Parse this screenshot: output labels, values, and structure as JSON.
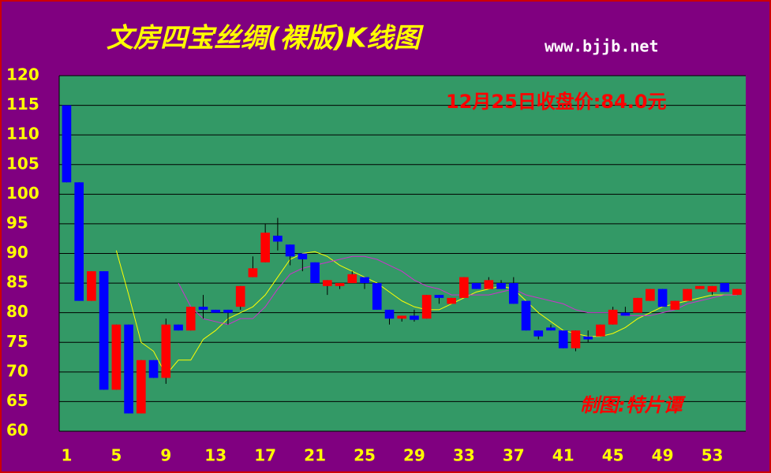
{
  "chart_data": {
    "type": "candlestick",
    "title": "文房四宝丝绸(裸版)K线图",
    "subtitle": "www.bjjb.net",
    "annotations": [
      "12月25日收盘价:84.0元",
      "制图:特片谭"
    ],
    "x": [
      1,
      2,
      3,
      4,
      5,
      6,
      7,
      8,
      9,
      10,
      11,
      12,
      13,
      14,
      15,
      16,
      17,
      18,
      19,
      20,
      21,
      22,
      23,
      24,
      25,
      26,
      27,
      28,
      29,
      30,
      31,
      32,
      33,
      34,
      35,
      36,
      37,
      38,
      39,
      40,
      41,
      42,
      43,
      44,
      45,
      46,
      47,
      48,
      49,
      50,
      51,
      52,
      53,
      54,
      55
    ],
    "open": [
      115,
      102,
      82,
      87,
      67,
      78,
      63,
      72,
      69,
      78,
      77,
      81,
      80.5,
      80.5,
      81,
      86,
      88.5,
      93,
      91.5,
      90,
      88.5,
      84.5,
      84.5,
      85,
      86,
      85,
      80.5,
      79,
      79.5,
      79,
      83,
      81.5,
      82.5,
      85,
      84,
      85,
      85,
      82,
      77,
      77.5,
      77,
      74,
      76,
      76,
      78,
      80,
      80,
      82,
      84,
      80.5,
      82,
      84,
      83.5,
      85,
      83
    ],
    "high": [
      115,
      102,
      87,
      87,
      78,
      78,
      72,
      72,
      79,
      78,
      81,
      83,
      80.5,
      80.5,
      84.5,
      89.5,
      95,
      96,
      91.5,
      90,
      88.5,
      85.5,
      85,
      87,
      86,
      85,
      80.5,
      79.5,
      80.5,
      83,
      83,
      82.5,
      86,
      85,
      86,
      85.5,
      86,
      82,
      77,
      78,
      77,
      77,
      77,
      78,
      81,
      81,
      82.5,
      84,
      84,
      82,
      84,
      84.5,
      84.5,
      85,
      84
    ],
    "low": [
      102,
      82,
      82,
      67,
      67,
      63,
      63,
      69,
      68,
      77,
      77,
      79,
      80,
      78,
      80.5,
      86,
      88.5,
      90.5,
      88,
      87,
      85,
      83,
      84,
      85,
      84,
      80.5,
      78,
      78.5,
      78.5,
      79,
      81.5,
      81.5,
      82.5,
      84,
      84,
      84,
      81.5,
      77,
      75.5,
      77,
      74,
      73.5,
      75,
      76,
      78,
      79.5,
      80,
      82,
      81,
      80.5,
      82,
      84,
      83,
      83.5,
      83
    ],
    "close": [
      102,
      82,
      87,
      67,
      78,
      63,
      72,
      69,
      78,
      77,
      81,
      80.5,
      80,
      80,
      84.5,
      87.5,
      93.5,
      92,
      89.5,
      89,
      85,
      85.5,
      85,
      86.5,
      85,
      80.5,
      79,
      79.5,
      78.8,
      83,
      82.5,
      82.5,
      86,
      84,
      85.5,
      84,
      81.5,
      77,
      76,
      77,
      74,
      77,
      75.5,
      78,
      80.5,
      79.5,
      82.5,
      84,
      81,
      82,
      84,
      84.5,
      84.5,
      83.5,
      84
    ],
    "up_color": "#ff0000",
    "down_color": "#0000ff",
    "lines": [
      {
        "color": "#ffff00",
        "values": [
          null,
          null,
          null,
          null,
          90.5,
          83,
          75,
          73.5,
          69.5,
          72,
          72,
          75.5,
          77,
          79,
          80,
          81,
          83,
          86,
          89,
          90,
          90.3,
          89.5,
          88,
          87,
          86,
          85,
          83.5,
          82,
          81,
          80.5,
          80.5,
          81.5,
          82.5,
          83.5,
          84,
          84.5,
          84,
          82,
          80,
          78.5,
          77,
          76.5,
          76,
          76,
          76.5,
          77.5,
          79,
          80,
          81,
          81.5,
          82,
          82.5,
          83,
          83,
          83
        ]
      },
      {
        "color": "#cc33cc",
        "values": [
          null,
          null,
          null,
          null,
          null,
          null,
          null,
          null,
          null,
          85,
          81,
          79,
          78.5,
          78,
          79,
          79,
          81,
          84,
          86.5,
          87.5,
          88,
          88.5,
          89,
          89.5,
          89.5,
          89,
          88,
          87,
          85.5,
          84.5,
          84,
          83,
          83,
          83,
          83,
          83.5,
          84,
          83,
          82.5,
          82,
          81.5,
          80.5,
          80,
          80,
          80,
          79.5,
          79.5,
          79.5,
          80,
          80.5,
          81.5,
          82,
          82.5,
          83,
          83
        ]
      }
    ],
    "xlim": [
      0.4,
      55.7
    ],
    "ylim": [
      60,
      120
    ],
    "xticks": [
      1,
      5,
      9,
      13,
      17,
      21,
      25,
      29,
      33,
      37,
      41,
      45,
      49,
      53
    ],
    "yticks": [
      60,
      65,
      70,
      75,
      80,
      85,
      90,
      95,
      100,
      105,
      110,
      115,
      120
    ],
    "grid": true
  }
}
